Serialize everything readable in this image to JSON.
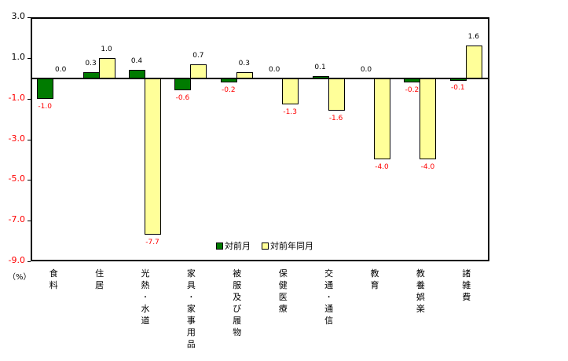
{
  "chart_data": {
    "type": "bar",
    "title": "",
    "xlabel": "",
    "ylabel": "(%)",
    "ylim": [
      -9.0,
      3.0
    ],
    "yticks": [
      "3.0",
      "1.0",
      "-1.0",
      "-3.0",
      "-5.0",
      "-7.0",
      "-9.0"
    ],
    "legend_position": "inside-bottom-center",
    "grid": false,
    "categories": [
      "食料",
      "住居",
      "光熱・水道",
      "家具・家事用品",
      "被服及び履物",
      "保健医療",
      "交通・通信",
      "教育",
      "教養娯楽",
      "諸雑費"
    ],
    "series": [
      {
        "name": "対前月",
        "color": "#007b00",
        "values": [
          -1.0,
          0.3,
          0.4,
          -0.6,
          -0.2,
          0.0,
          0.1,
          0.0,
          -0.2,
          -0.1
        ]
      },
      {
        "name": "対前年同月",
        "color": "#ffff99",
        "values": [
          0.0,
          1.0,
          -7.7,
          0.7,
          0.3,
          -1.3,
          -1.6,
          -4.0,
          -4.0,
          1.6
        ]
      }
    ]
  },
  "labels": {
    "unit": "（%）",
    "positive_color": "#000000",
    "negative_color": "#ff0000"
  }
}
